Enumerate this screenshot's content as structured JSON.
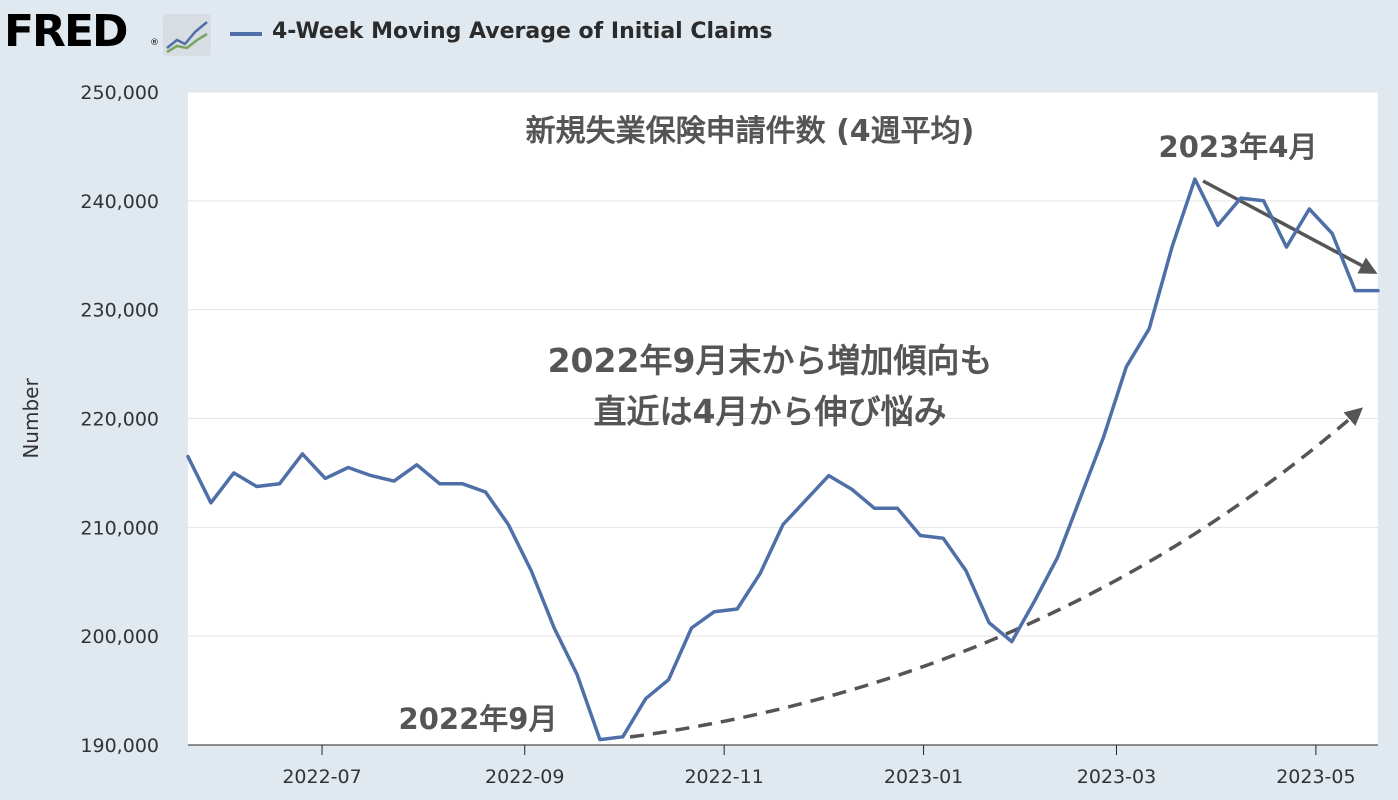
{
  "header": {
    "logo_text": "FRED",
    "logo_reg": "®",
    "legend_label": "4-Week Moving Average of Initial Claims"
  },
  "colors": {
    "series": "#4f6fa8",
    "background": "#e1e9f0",
    "plot": "#ffffff",
    "annotation_text": "#555555",
    "trend_arrow": "#555555"
  },
  "chart_data": {
    "type": "line",
    "ylabel": "Number",
    "ylim": [
      190000,
      250000
    ],
    "y_ticks": [
      190000,
      200000,
      210000,
      220000,
      230000,
      240000,
      250000
    ],
    "y_tick_labels": [
      "190,000",
      "200,000",
      "210,000",
      "220,000",
      "230,000",
      "240,000",
      "250,000"
    ],
    "x_range": [
      "2022-05-21",
      "2023-05-20"
    ],
    "x_ticks": [
      "2022-07-01",
      "2022-09-01",
      "2022-11-01",
      "2023-01-01",
      "2023-03-01",
      "2023-05-01"
    ],
    "x_tick_labels": [
      "2022-07",
      "2022-09",
      "2022-11",
      "2023-01",
      "2023-03",
      "2023-05"
    ],
    "grid": "horizontal",
    "series": [
      {
        "name": "4-Week Moving Average of Initial Claims",
        "x": [
          "2022-05-21",
          "2022-05-28",
          "2022-06-04",
          "2022-06-11",
          "2022-06-18",
          "2022-06-25",
          "2022-07-02",
          "2022-07-09",
          "2022-07-16",
          "2022-07-23",
          "2022-07-30",
          "2022-08-06",
          "2022-08-13",
          "2022-08-20",
          "2022-08-27",
          "2022-09-03",
          "2022-09-10",
          "2022-09-17",
          "2022-09-24",
          "2022-10-01",
          "2022-10-08",
          "2022-10-15",
          "2022-10-22",
          "2022-10-29",
          "2022-11-05",
          "2022-11-12",
          "2022-11-19",
          "2022-11-26",
          "2022-12-03",
          "2022-12-10",
          "2022-12-17",
          "2022-12-24",
          "2022-12-31",
          "2023-01-07",
          "2023-01-14",
          "2023-01-21",
          "2023-01-28",
          "2023-02-04",
          "2023-02-11",
          "2023-02-18",
          "2023-02-25",
          "2023-03-04",
          "2023-03-11",
          "2023-03-18",
          "2023-03-25",
          "2023-04-01",
          "2023-04-08",
          "2023-04-15",
          "2023-04-22",
          "2023-04-29",
          "2023-05-06",
          "2023-05-13",
          "2023-05-20"
        ],
        "values": [
          216500,
          212250,
          215000,
          213750,
          214000,
          216750,
          214500,
          215500,
          214750,
          214250,
          215750,
          214000,
          214000,
          213250,
          210250,
          206000,
          200750,
          196500,
          190500,
          190750,
          194250,
          196000,
          200750,
          202250,
          202500,
          205750,
          210250,
          212500,
          214750,
          213500,
          211750,
          211750,
          209250,
          209000,
          206000,
          201250,
          199500,
          203250,
          207250,
          212750,
          218250,
          224750,
          228250,
          235750,
          242000,
          237750,
          240250,
          240000,
          235750,
          239250,
          237000,
          231750,
          231750
        ]
      }
    ],
    "annotations": [
      {
        "text": "新規失業保険申請件数 (4週平均)"
      },
      {
        "text": "2023年4月"
      },
      {
        "text": "2022年9月末から増加傾向も"
      },
      {
        "text": "直近は4月から伸び悩み"
      },
      {
        "text": "2022年9月"
      }
    ]
  }
}
